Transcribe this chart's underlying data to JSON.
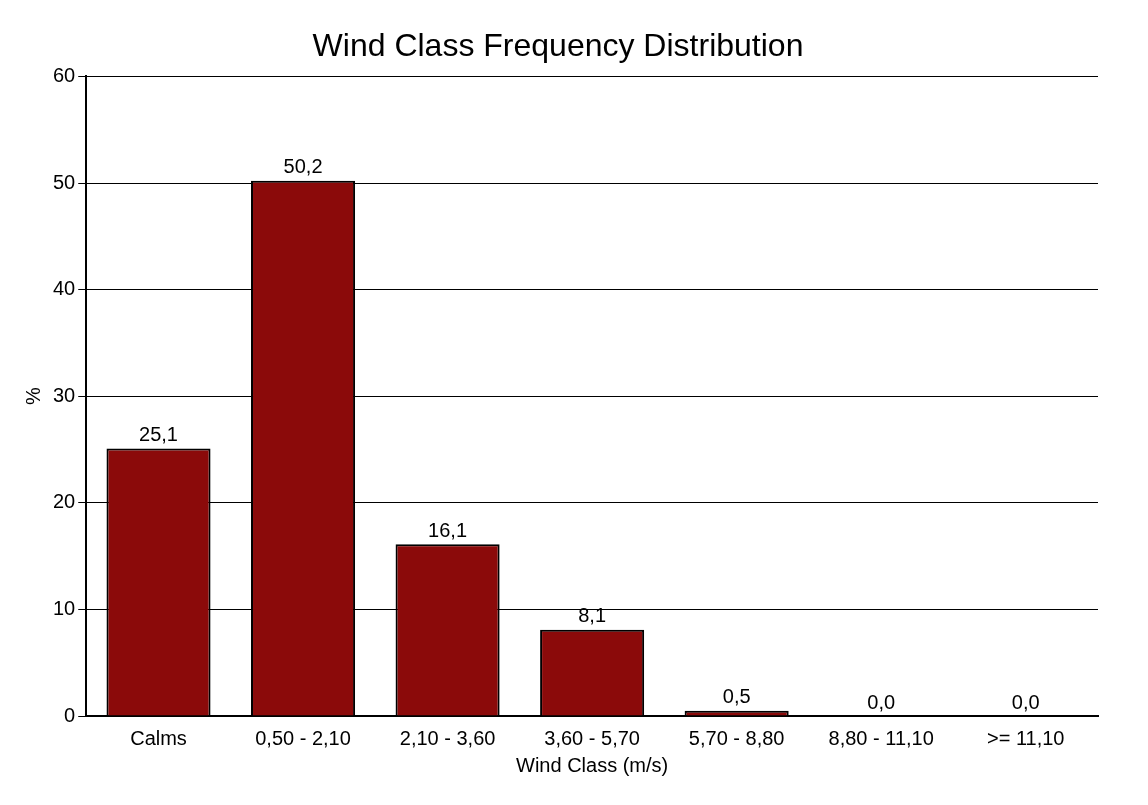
{
  "chart_data": {
    "type": "bar",
    "title": "Wind Class Frequency Distribution",
    "xlabel": "Wind Class (m/s)",
    "ylabel": "%",
    "categories": [
      "Calms",
      "0,50 - 2,10",
      "2,10 - 3,60",
      "3,60 - 5,70",
      "5,70 - 8,80",
      "8,80 - 11,10",
      ">= 11,10"
    ],
    "values": [
      25.1,
      50.2,
      16.1,
      8.1,
      0.5,
      0.0,
      0.0
    ],
    "value_labels": [
      "25,1",
      "50,2",
      "16,1",
      "8,1",
      "0,5",
      "0,0",
      "0,0"
    ],
    "color": "#8b0a0a",
    "ylim": [
      0,
      60
    ],
    "yticks": [
      0,
      10,
      20,
      30,
      40,
      50,
      60
    ],
    "grid": "y"
  }
}
